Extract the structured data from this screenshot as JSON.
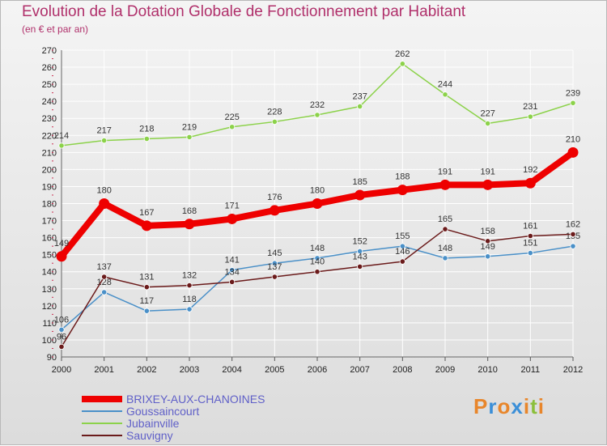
{
  "header": {
    "title": "Evolution de la Dotation Globale de Fonctionnement par Habitant",
    "subtitle": "(en € et par an)"
  },
  "logo": {
    "text": "Proxiti",
    "colors": [
      "#e8862b",
      "#3b8fd8",
      "#e8862b",
      "#3b8fd8",
      "#e8862b",
      "#8bbf3b",
      "#e8862b"
    ]
  },
  "colors": {
    "axis_label": "#222222",
    "tick_mark": "#cc3355",
    "grid": "#ffffff",
    "legend_text": "#6060c8"
  },
  "chart_data": {
    "type": "line",
    "title": "Evolution de la Dotation Globale de Fonctionnement par Habitant",
    "subtitle": "(en € et par an)",
    "xlabel": "",
    "ylabel": "",
    "x": [
      "2000",
      "2001",
      "2002",
      "2003",
      "2004",
      "2005",
      "2006",
      "2007",
      "2008",
      "2009",
      "2010",
      "2011",
      "2012"
    ],
    "ylim": [
      90,
      270
    ],
    "yticks": [
      90,
      100,
      110,
      120,
      130,
      140,
      150,
      160,
      170,
      180,
      190,
      200,
      210,
      220,
      230,
      240,
      250,
      260,
      270
    ],
    "grid": true,
    "legend_position": "bottom-left",
    "series": [
      {
        "name": "BRIXEY-AUX-CHANOINES",
        "color": "#ee0000",
        "values": [
          149,
          180,
          167,
          168,
          171,
          176,
          180,
          185,
          188,
          191,
          191,
          192,
          210
        ]
      },
      {
        "name": "Goussaincourt",
        "color": "#4a90c8",
        "values": [
          106,
          128,
          117,
          118,
          141,
          145,
          148,
          152,
          155,
          148,
          149,
          151,
          155
        ]
      },
      {
        "name": "Jubainville",
        "color": "#8cd24a",
        "values": [
          214,
          217,
          218,
          219,
          225,
          228,
          232,
          237,
          262,
          244,
          227,
          231,
          239
        ]
      },
      {
        "name": "Sauvigny",
        "color": "#6b1b1b",
        "values": [
          96,
          137,
          131,
          132,
          134,
          137,
          140,
          143,
          146,
          165,
          158,
          161,
          162
        ]
      }
    ]
  }
}
